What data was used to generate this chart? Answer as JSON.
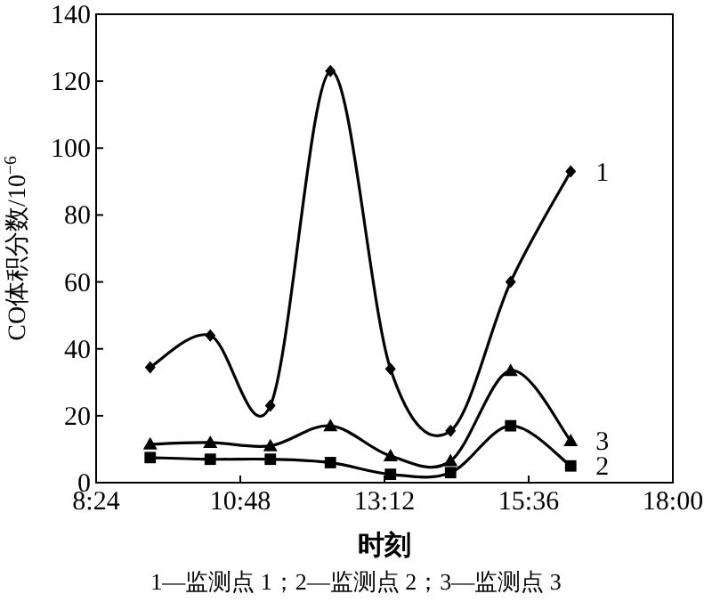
{
  "chart_data": {
    "type": "line",
    "xlabel": "时刻",
    "ylabel": "CO体积分数/10$^{−6}$",
    "annotations": [
      "1—监测点 1；2—监测点 2；3—监测点 3"
    ],
    "xlim": [
      8.4,
      18
    ],
    "xticks": [
      {
        "value": 8.4,
        "label": "8:24"
      },
      {
        "value": 10.8,
        "label": "10:48"
      },
      {
        "value": 13.2,
        "label": "13:12"
      },
      {
        "value": 15.6,
        "label": "15:36"
      },
      {
        "value": 18,
        "label": "18:00"
      }
    ],
    "ylim": [
      0,
      140
    ],
    "yticks": [
      0,
      20,
      40,
      60,
      80,
      100,
      120,
      140
    ],
    "grid": false,
    "line_style": "solid",
    "x": [
      9.3,
      10.3,
      11.3,
      12.3,
      13.3,
      14.3,
      15.3,
      16.3
    ],
    "series": [
      {
        "name": "1",
        "color": "#000000",
        "marker": "diamond",
        "values": [
          34.5,
          44,
          23,
          123,
          34,
          15.5,
          60,
          93
        ]
      },
      {
        "name": "2",
        "color": "#000000",
        "marker": "square",
        "values": [
          7.5,
          7,
          7,
          6,
          2.5,
          3,
          17,
          5
        ]
      },
      {
        "name": "3",
        "color": "#000000",
        "marker": "triangle",
        "values": [
          11.5,
          12,
          11,
          17,
          8,
          6.5,
          33.5,
          12.5
        ]
      }
    ]
  }
}
